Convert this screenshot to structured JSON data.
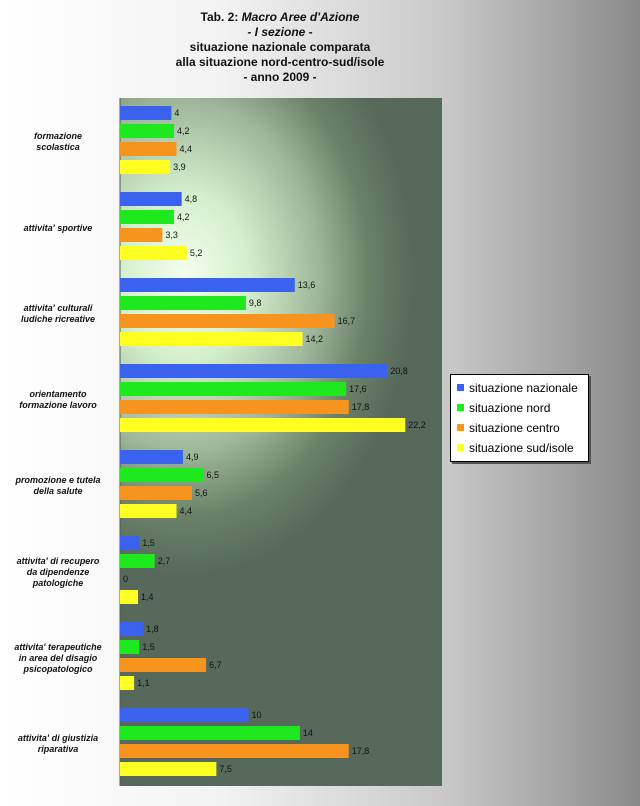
{
  "title": {
    "prefix": "Tab. 2: ",
    "emph": "Macro Aree d'Azione",
    "line2": "- I sezione -",
    "line3": "situazione nazionale comparata",
    "line4": "alla situazione nord-centro-sud/isole",
    "line5": "- anno 2009 -"
  },
  "chart_data": {
    "type": "bar",
    "orientation": "horizontal",
    "xlim": [
      0,
      24
    ],
    "categories": [
      "formazione\nscolastica",
      "attivita' sportive",
      "attivita' culturali\nludiche ricreative",
      "orientamento\nformazione lavoro",
      "promozione e tutela\ndella salute",
      "attivita' di recupero\nda dipendenze\npatologiche",
      "attivita' terapeutiche\nin area del disagio\npsicopatologico",
      "attivita' di giustizia\nriparativa"
    ],
    "series": [
      {
        "name": "situazione nazionale",
        "color": "#3a62ee",
        "values": [
          4,
          4.8,
          13.6,
          20.8,
          4.9,
          1.5,
          1.8,
          10
        ],
        "labels": [
          "4",
          "4,8",
          "13,6",
          "20,8",
          "4,9",
          "1,5",
          "1,8",
          "10"
        ]
      },
      {
        "name": "situazione nord",
        "color": "#1ee81e",
        "values": [
          4.2,
          4.2,
          9.8,
          17.6,
          6.5,
          2.7,
          1.5,
          14
        ],
        "labels": [
          "4,2",
          "4,2",
          "9,8",
          "17,6",
          "6,5",
          "2,7",
          "1,5",
          "14"
        ]
      },
      {
        "name": "situazione centro",
        "color": "#f7941d",
        "values": [
          4.4,
          3.3,
          16.7,
          17.8,
          5.6,
          0,
          6.7,
          17.8
        ],
        "labels": [
          "4,4",
          "3,3",
          "16,7",
          "17,8",
          "5,6",
          "0",
          "6,7",
          "17,8"
        ]
      },
      {
        "name": "situazione sud/isole",
        "color": "#ffff22",
        "values": [
          3.9,
          5.2,
          14.2,
          22.2,
          4.4,
          1.4,
          1.1,
          7.5
        ],
        "labels": [
          "3,9",
          "5,2",
          "14,2",
          "22,2",
          "4,4",
          "1,4",
          "1,1",
          "7,5"
        ]
      }
    ]
  }
}
